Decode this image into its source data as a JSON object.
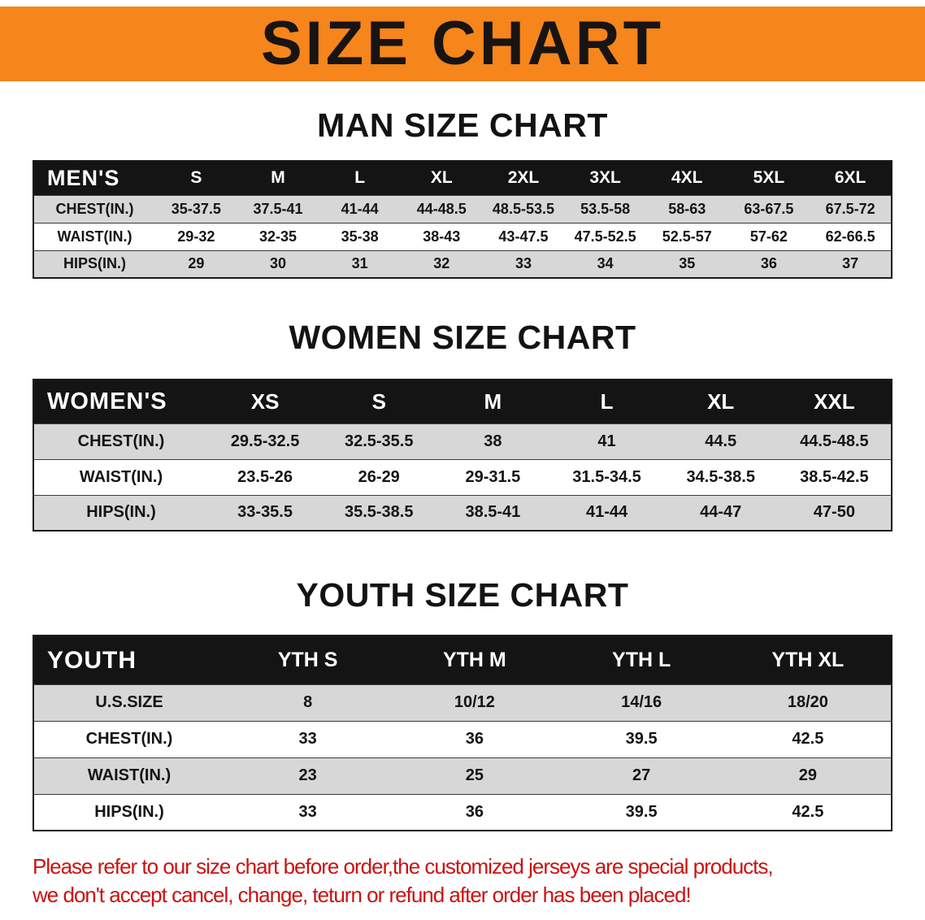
{
  "banner": {
    "title": "SIZE CHART",
    "bg_color": "#f6851c"
  },
  "sections": [
    {
      "heading": "MAN SIZE CHART",
      "table": {
        "header": [
          "MEN'S",
          "S",
          "M",
          "L",
          "XL",
          "2XL",
          "3XL",
          "4XL",
          "5XL",
          "6XL"
        ],
        "rows": [
          {
            "label": "CHEST(IN.)",
            "values": [
              "35-37.5",
              "37.5-41",
              "41-44",
              "44-48.5",
              "48.5-53.5",
              "53.5-58",
              "58-63",
              "63-67.5",
              "67.5-72"
            ]
          },
          {
            "label": "WAIST(IN.)",
            "values": [
              "29-32",
              "32-35",
              "35-38",
              "38-43",
              "43-47.5",
              "47.5-52.5",
              "52.5-57",
              "57-62",
              "62-66.5"
            ]
          },
          {
            "label": "HIPS(IN.)",
            "values": [
              "29",
              "30",
              "31",
              "32",
              "33",
              "34",
              "35",
              "36",
              "37"
            ]
          }
        ]
      }
    },
    {
      "heading": "WOMEN SIZE CHART",
      "table": {
        "header": [
          "WOMEN'S",
          "XS",
          "S",
          "M",
          "L",
          "XL",
          "XXL"
        ],
        "rows": [
          {
            "label": "CHEST(IN.)",
            "values": [
              "29.5-32.5",
              "32.5-35.5",
              "38",
              "41",
              "44.5",
              "44.5-48.5"
            ]
          },
          {
            "label": "WAIST(IN.)",
            "values": [
              "23.5-26",
              "26-29",
              "29-31.5",
              "31.5-34.5",
              "34.5-38.5",
              "38.5-42.5"
            ]
          },
          {
            "label": "HIPS(IN.)",
            "values": [
              "33-35.5",
              "35.5-38.5",
              "38.5-41",
              "41-44",
              "44-47",
              "47-50"
            ]
          }
        ]
      }
    },
    {
      "heading": "YOUTH SIZE CHART",
      "table": {
        "header": [
          "YOUTH",
          "YTH S",
          "YTH M",
          "YTH L",
          "YTH XL"
        ],
        "rows": [
          {
            "label": "U.S.SIZE",
            "values": [
              "8",
              "10/12",
              "14/16",
              "18/20"
            ]
          },
          {
            "label": "CHEST(IN.)",
            "values": [
              "33",
              "36",
              "39.5",
              "42.5"
            ]
          },
          {
            "label": "WAIST(IN.)",
            "values": [
              "23",
              "25",
              "27",
              "29"
            ]
          },
          {
            "label": "HIPS(IN.)",
            "values": [
              "33",
              "36",
              "39.5",
              "42.5"
            ]
          }
        ]
      }
    }
  ],
  "footer": {
    "line1": "Please refer to our size chart before order,the customized jerseys are special products,",
    "line2": "we don't accept cancel, change, teturn or refund after order has been placed!",
    "color": "#cc1111"
  }
}
